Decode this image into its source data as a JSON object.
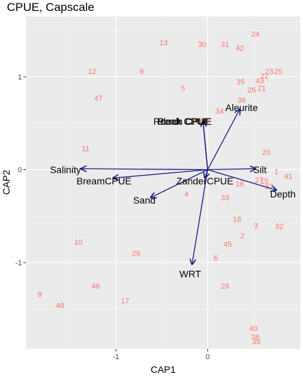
{
  "chart_data": {
    "type": "scatter",
    "title": "CPUE, Capscale",
    "xlabel": "CAP1",
    "ylabel": "CAP2",
    "xlim": [
      -1.98,
      1.01
    ],
    "ylim": [
      -1.93,
      1.65
    ],
    "xticks": [
      -1,
      0
    ],
    "yticks": [
      -1,
      0,
      1
    ],
    "grid": true,
    "points": [
      {
        "label": "1",
        "x": 0.75,
        "y": -0.02
      },
      {
        "label": "2",
        "x": 0.38,
        "y": -0.71
      },
      {
        "label": "3",
        "x": 0.53,
        "y": -0.6
      },
      {
        "label": "4",
        "x": -0.23,
        "y": -0.26
      },
      {
        "label": "5",
        "x": -0.27,
        "y": 0.88
      },
      {
        "label": "6",
        "x": 0.09,
        "y": -0.95
      },
      {
        "label": "7",
        "x": -0.11,
        "y": 0.52
      },
      {
        "label": "8",
        "x": -1.83,
        "y": -1.34
      },
      {
        "label": "9",
        "x": -0.72,
        "y": 1.06
      },
      {
        "label": "10",
        "x": -1.41,
        "y": -0.78
      },
      {
        "label": "11",
        "x": -1.33,
        "y": 0.23
      },
      {
        "label": "12",
        "x": -1.26,
        "y": 1.06
      },
      {
        "label": "13",
        "x": -0.48,
        "y": 1.37
      },
      {
        "label": "14",
        "x": -0.15,
        "y": 0.52
      },
      {
        "label": "15",
        "x": 0.62,
        "y": -0.12
      },
      {
        "label": "16",
        "x": 0.35,
        "y": -0.15
      },
      {
        "label": "17",
        "x": -0.9,
        "y": -1.41
      },
      {
        "label": "18",
        "x": 0.32,
        "y": -0.53
      },
      {
        "label": "19",
        "x": -0.08,
        "y": 0.52
      },
      {
        "label": "20",
        "x": 0.64,
        "y": 0.19
      },
      {
        "label": "21",
        "x": 0.59,
        "y": 0.88
      },
      {
        "label": "22",
        "x": 0.62,
        "y": 1.01
      },
      {
        "label": "23",
        "x": 0.67,
        "y": 1.06
      },
      {
        "label": "24",
        "x": 0.52,
        "y": 1.46
      },
      {
        "label": "25",
        "x": 0.77,
        "y": 1.06
      },
      {
        "label": "26",
        "x": 0.48,
        "y": 0.86
      },
      {
        "label": "27",
        "x": 0.56,
        "y": -0.11
      },
      {
        "label": "28",
        "x": 0.19,
        "y": -1.25
      },
      {
        "label": "29",
        "x": -0.78,
        "y": -0.9
      },
      {
        "label": "30",
        "x": -0.06,
        "y": 1.35
      },
      {
        "label": "31",
        "x": 0.19,
        "y": 1.35
      },
      {
        "label": "32",
        "x": 0.78,
        "y": -0.61
      },
      {
        "label": "33",
        "x": 0.19,
        "y": -0.3
      },
      {
        "label": "34",
        "x": 0.13,
        "y": 0.63
      },
      {
        "label": "35",
        "x": 0.36,
        "y": 0.95
      },
      {
        "label": "36",
        "x": 0.37,
        "y": 0.75
      },
      {
        "label": "37",
        "x": 0.67,
        "y": -0.18
      },
      {
        "label": "38",
        "x": 0.52,
        "y": -1.8
      },
      {
        "label": "39",
        "x": 0.53,
        "y": -1.85
      },
      {
        "label": "40",
        "x": 0.5,
        "y": -1.71
      },
      {
        "label": "41",
        "x": 0.88,
        "y": -0.07
      },
      {
        "label": "42",
        "x": 0.35,
        "y": 1.31
      },
      {
        "label": "43",
        "x": 0.57,
        "y": 0.96
      },
      {
        "label": "44",
        "x": -0.03,
        "y": 0.52
      },
      {
        "label": "45",
        "x": 0.22,
        "y": -0.8
      },
      {
        "label": "46",
        "x": -1.22,
        "y": -1.25
      },
      {
        "label": "47",
        "x": -1.19,
        "y": 0.77
      },
      {
        "label": "48",
        "x": -1.61,
        "y": -1.46
      }
    ],
    "vectors": [
      {
        "label": "Aleurite",
        "x": 0.35,
        "y": 0.65,
        "lx": 0.37,
        "ly": 0.67
      },
      {
        "label": "Roach CPUE",
        "x": -0.05,
        "y": 0.52,
        "lx": -0.28,
        "ly": 0.52
      },
      {
        "label": "Bleak CPUE",
        "x": -0.05,
        "y": 0.52,
        "lx": -0.26,
        "ly": 0.52
      },
      {
        "label": "Perch CPUE",
        "x": -0.05,
        "y": 0.52,
        "lx": -0.25,
        "ly": 0.52
      },
      {
        "label": "Salinity",
        "x": -1.38,
        "y": 0.01,
        "lx": -1.55,
        "ly": 0.0
      },
      {
        "label": "BreamCPUE",
        "x": -1.03,
        "y": -0.09,
        "lx": -1.13,
        "ly": -0.12
      },
      {
        "label": "ZanderCPUE",
        "x": -0.03,
        "y": -0.09,
        "lx": -0.03,
        "ly": -0.12
      },
      {
        "label": "Silt",
        "x": 0.52,
        "y": 0.01,
        "lx": 0.57,
        "ly": 0.0
      },
      {
        "label": "Depth",
        "x": 0.75,
        "y": -0.22,
        "lx": 0.82,
        "ly": -0.26
      },
      {
        "label": "Sand",
        "x": -0.62,
        "y": -0.3,
        "lx": -0.69,
        "ly": -0.33
      },
      {
        "label": "WRT",
        "x": -0.17,
        "y": -1.02,
        "lx": -0.19,
        "ly": -1.12
      }
    ]
  }
}
